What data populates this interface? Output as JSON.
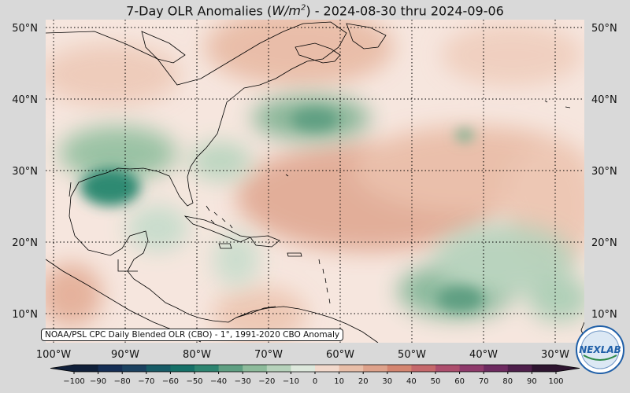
{
  "title": {
    "prefix": "7-Day OLR Anomalies (",
    "unit_base": "W/m",
    "unit_exp": "2",
    "suffix": ") - 2024-08-30 thru 2024-09-06"
  },
  "map": {
    "lat_labels": [
      "50°N",
      "40°N",
      "30°N",
      "20°N",
      "10°N"
    ],
    "lon_labels": [
      "100°W",
      "90°W",
      "80°W",
      "70°W",
      "60°W",
      "50°W",
      "40°W",
      "30°W"
    ],
    "gridlines": "dotted"
  },
  "source_text": "NOAA/PSL CPC Daily Blended OLR (CBO) - 1°, 1991-2020 CBO Anomaly",
  "colorbar": {
    "ticks": [
      "−100",
      "−90",
      "−80",
      "−70",
      "−60",
      "−50",
      "−40",
      "−30",
      "−20",
      "−10",
      "0",
      "10",
      "20",
      "30",
      "40",
      "50",
      "60",
      "70",
      "80",
      "90",
      "100"
    ],
    "colors": [
      "#10203a",
      "#152e55",
      "#1b4160",
      "#175b66",
      "#167068",
      "#2d8470",
      "#5f9f82",
      "#8dbb9b",
      "#b6d2bb",
      "#dde8dc",
      "#faf3ee",
      "#f2d9cc",
      "#e8bea8",
      "#dea28b",
      "#d48570",
      "#c5686b",
      "#ad4e6d",
      "#8e3a6b",
      "#6d2a60",
      "#4e1f4b",
      "#2e1530"
    ]
  },
  "logo": {
    "text": "NEXLAB",
    "colors": {
      "ring": "#1f5fa8",
      "inner": "#dce8f4"
    }
  }
}
